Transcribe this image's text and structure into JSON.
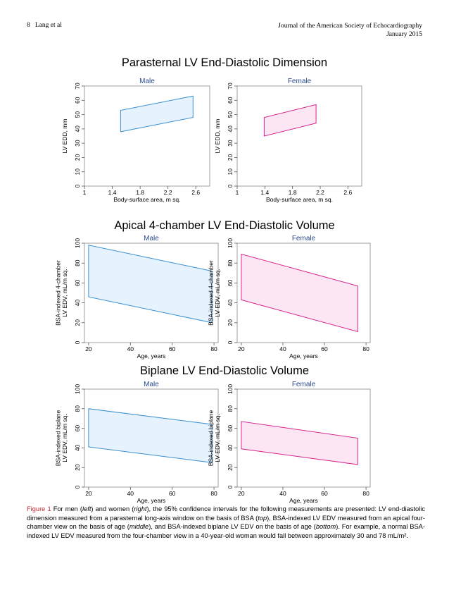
{
  "header": {
    "page_number": "8",
    "author": "Lang et al",
    "journal": "Journal of the American Society of Echocardiography",
    "issue_date": "January 2015"
  },
  "rows": [
    {
      "title": "Parasternal LV End-Diastolic Dimension"
    },
    {
      "title": "Apical 4-chamber LV End-Diastolic Volume"
    },
    {
      "title": "Biplane LV End-Diastolic Volume"
    }
  ],
  "caption": {
    "figure_label": "Figure 1",
    "text": "For men (left) and women (right), the 95% confidence intervals for the following measurements are presented: LV end-diastolic dimension measured from a parasternal long-axis window on the basis of BSA (top), BSA-indexed LV EDV measured from an apical four-chamber view on the basis of age (middle), and BSA-indexed biplane LV EDV on the basis of age (bottom). For example, a normal BSA-indexed LV EDV measured from the four-chamber view in a 40-year-old woman would fall between approximately 30 and 78 mL/m²."
  },
  "colors": {
    "male_stroke": "#3a8fd0",
    "male_fill": "#e6f2fd",
    "female_stroke": "#d6258a",
    "female_fill": "#fde6f3",
    "panel_title": "#2b4a8c",
    "caption_label": "#c0282f"
  },
  "chart_data": [
    {
      "type": "area",
      "row": 0,
      "panel_title": "Male",
      "xlabel": "Body-surface area, m sq.",
      "ylabel": "LV EDD, mm",
      "xlim": [
        1.0,
        2.8
      ],
      "ylim": [
        0,
        70
      ],
      "xticks": [
        "1",
        "1.4",
        "1.8",
        "2.2",
        "2.6"
      ],
      "yticks": [
        "0",
        "10",
        "20",
        "30",
        "40",
        "50",
        "60",
        "70"
      ],
      "polygon": [
        [
          1.52,
          38
        ],
        [
          1.52,
          53
        ],
        [
          2.56,
          63
        ],
        [
          2.56,
          48
        ]
      ],
      "grid": false
    },
    {
      "type": "area",
      "row": 0,
      "panel_title": "Female",
      "xlabel": "Body-surface area, m sq.",
      "ylabel": "LV EDD, mm",
      "xlim": [
        1.0,
        2.8
      ],
      "ylim": [
        0,
        70
      ],
      "xticks": [
        "1",
        "1.4",
        "1.8",
        "2.2",
        "2.6"
      ],
      "yticks": [
        "0",
        "10",
        "20",
        "30",
        "40",
        "50",
        "60",
        "70"
      ],
      "polygon": [
        [
          1.39,
          35
        ],
        [
          1.39,
          48
        ],
        [
          2.14,
          57
        ],
        [
          2.14,
          44
        ]
      ],
      "grid": false
    },
    {
      "type": "area",
      "row": 1,
      "panel_title": "Male",
      "xlabel": "Age, years",
      "ylabel": "BSA-indexed 4-chamber LV EDV, mL/m sq.",
      "xlim": [
        18,
        82
      ],
      "ylim": [
        0,
        100
      ],
      "xticks": [
        "20",
        "40",
        "60",
        "80"
      ],
      "yticks": [
        "0",
        "20",
        "40",
        "60",
        "80",
        "100"
      ],
      "polygon": [
        [
          20,
          46
        ],
        [
          20,
          98
        ],
        [
          79,
          72
        ],
        [
          79,
          20
        ]
      ],
      "grid": false
    },
    {
      "type": "area",
      "row": 1,
      "panel_title": "Female",
      "xlabel": "Age, years",
      "ylabel": "BSA-indexed 4-chamber LV EDV, mL/m sq.",
      "xlim": [
        18,
        82
      ],
      "ylim": [
        0,
        100
      ],
      "xticks": [
        "20",
        "40",
        "60",
        "80"
      ],
      "yticks": [
        "0",
        "20",
        "40",
        "60",
        "80",
        "100"
      ],
      "polygon": [
        [
          20,
          43
        ],
        [
          20,
          89
        ],
        [
          76,
          57
        ],
        [
          76,
          11
        ]
      ],
      "grid": false
    },
    {
      "type": "area",
      "row": 2,
      "panel_title": "Male",
      "xlabel": "Age, years",
      "ylabel": "BSA-indexed biplane LV EDV, mL/m sq.",
      "xlim": [
        18,
        82
      ],
      "ylim": [
        0,
        100
      ],
      "xticks": [
        "20",
        "40",
        "60",
        "80"
      ],
      "yticks": [
        "0",
        "20",
        "40",
        "60",
        "80",
        "100"
      ],
      "polygon": [
        [
          20,
          41
        ],
        [
          20,
          80
        ],
        [
          79,
          64
        ],
        [
          79,
          25
        ]
      ],
      "grid": false
    },
    {
      "type": "area",
      "row": 2,
      "panel_title": "Female",
      "xlabel": "Age, years",
      "ylabel": "BSA-indexed biplane LV EDV, mL/m sq.",
      "xlim": [
        18,
        82
      ],
      "ylim": [
        0,
        100
      ],
      "xticks": [
        "20",
        "40",
        "60",
        "80"
      ],
      "yticks": [
        "0",
        "20",
        "40",
        "60",
        "80",
        "100"
      ],
      "polygon": [
        [
          20,
          39
        ],
        [
          20,
          67
        ],
        [
          76,
          50
        ],
        [
          76,
          23
        ]
      ],
      "grid": false
    }
  ]
}
